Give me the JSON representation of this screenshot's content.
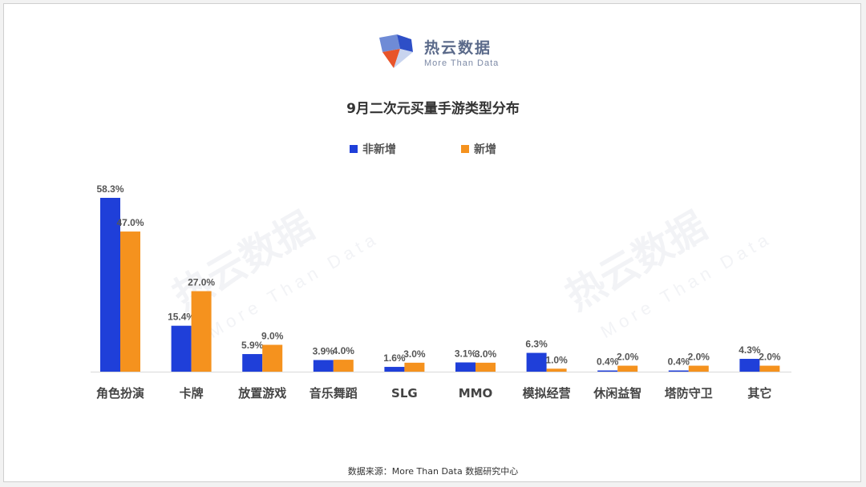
{
  "logo": {
    "name": "热云数据",
    "tagline": "More Than Data"
  },
  "watermark": {
    "name": "热云数据",
    "tagline": "More Than Data"
  },
  "source": "数据来源：More Than Data 数据研究中心",
  "colors": {
    "series1": "#1f3fd9",
    "series2": "#f5921e",
    "axis": "#d9d9d9",
    "label": "#555555"
  },
  "chart_data": {
    "type": "bar",
    "title": "9月二次元买量手游类型分布",
    "categories": [
      "角色扮演",
      "卡牌",
      "放置游戏",
      "音乐舞蹈",
      "SLG",
      "MMO",
      "模拟经营",
      "休闲益智",
      "塔防守卫",
      "其它"
    ],
    "series": [
      {
        "name": "非新增",
        "values": [
          58.3,
          15.4,
          5.9,
          3.9,
          1.6,
          3.1,
          6.3,
          0.4,
          0.4,
          4.3
        ],
        "labels": [
          "58.3%",
          "15.4%",
          "5.9%",
          "3.9%",
          "1.6%",
          "3.1%",
          "6.3%",
          "0.4%",
          "0.4%",
          "4.3%"
        ]
      },
      {
        "name": "新增",
        "values": [
          47.0,
          27.0,
          9.0,
          4.0,
          3.0,
          3.0,
          1.0,
          2.0,
          2.0,
          2.0
        ],
        "labels": [
          "47.0%",
          "27.0%",
          "9.0%",
          "4.0%",
          "3.0%",
          "3.0%",
          "1.0%",
          "2.0%",
          "2.0%",
          "2.0%"
        ]
      }
    ],
    "ylim": [
      0,
      58.3
    ],
    "unit": "%",
    "grid": false,
    "legend_position": "top-center"
  }
}
